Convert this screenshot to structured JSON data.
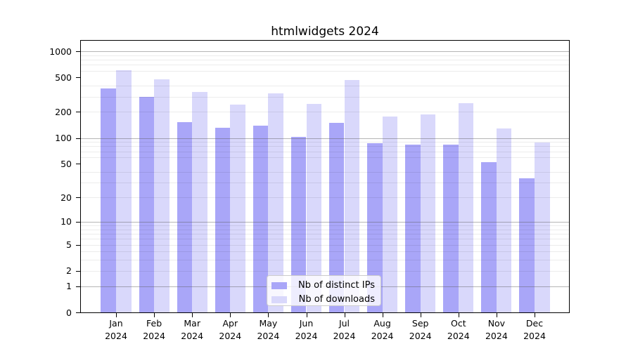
{
  "chart_data": {
    "type": "bar",
    "title": "htmlwidgets 2024",
    "categories": [
      "Jan",
      "Feb",
      "Mar",
      "Apr",
      "May",
      "Jun",
      "Jul",
      "Aug",
      "Sep",
      "Oct",
      "Nov",
      "Dec"
    ],
    "category_year": "2024",
    "series": [
      {
        "name": "Nb of distinct IPs",
        "color": "#a9a6f8",
        "values": [
          370,
          300,
          152,
          132,
          140,
          102,
          151,
          87,
          84,
          84,
          52,
          34
        ]
      },
      {
        "name": "Nb of downloads",
        "color": "#d9d8fb",
        "values": [
          605,
          473,
          341,
          243,
          329,
          246,
          469,
          177,
          188,
          254,
          130,
          89
        ]
      }
    ],
    "y_axis": {
      "scale": "log1p",
      "ticks": [
        0,
        1,
        2,
        5,
        10,
        20,
        50,
        100,
        200,
        500,
        1000
      ],
      "decade_gridlines": [
        1,
        10,
        100,
        1000
      ],
      "minor_gridlines": [
        2,
        3,
        4,
        5,
        6,
        7,
        8,
        9,
        20,
        30,
        40,
        60,
        70,
        80,
        90,
        200,
        300,
        400,
        600,
        700,
        800,
        900
      ],
      "ylim": [
        0,
        1350
      ]
    },
    "legend_position": "lower-center",
    "grid": "on",
    "colors": {
      "decade_gridline": "#b3b3b3",
      "minor_gridline": "#ececec",
      "axis": "#000000",
      "background": "#ffffff"
    }
  }
}
